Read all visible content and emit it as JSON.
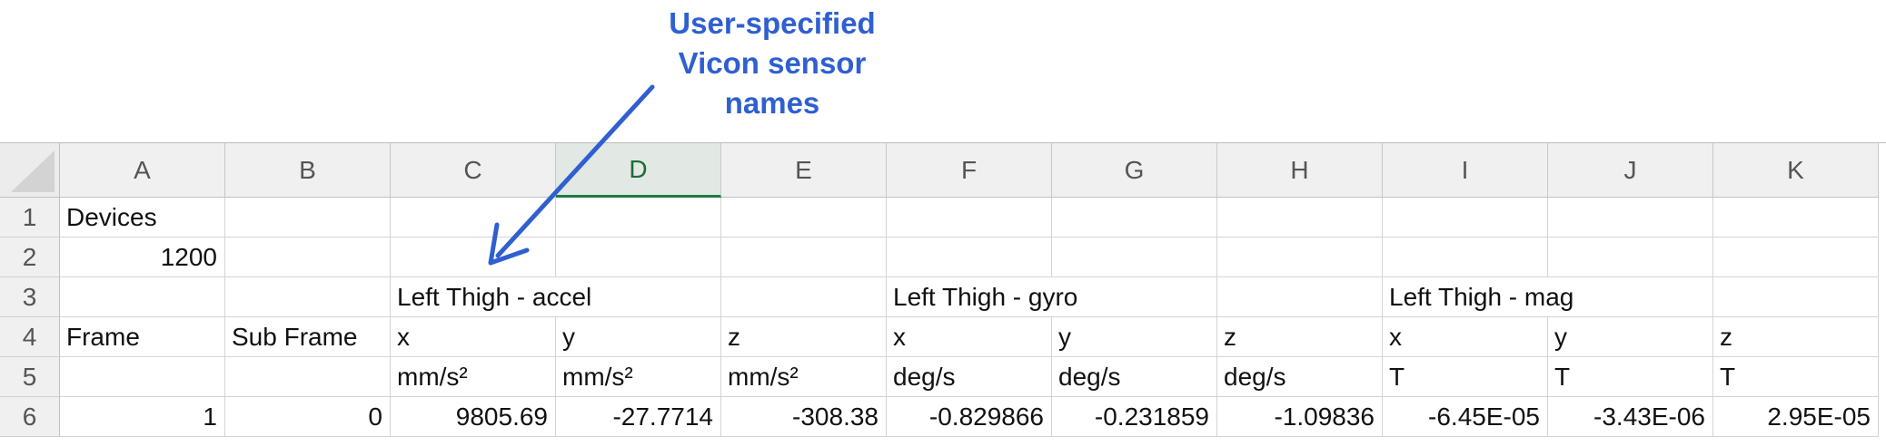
{
  "annotation": {
    "lines": [
      "User-specified",
      "Vicon sensor",
      "names"
    ],
    "color": "#2f5fd0"
  },
  "columns": [
    "A",
    "B",
    "C",
    "D",
    "E",
    "F",
    "G",
    "H",
    "I",
    "J",
    "K"
  ],
  "selected_column": "D",
  "rows": [
    {
      "num": "1",
      "cells": [
        {
          "col": "A",
          "text": "Devices",
          "align": "left"
        }
      ]
    },
    {
      "num": "2",
      "cells": [
        {
          "col": "A",
          "text": "1200",
          "align": "right"
        }
      ]
    },
    {
      "num": "3",
      "cells": [
        {
          "col": "C",
          "text": "Left Thigh - accel",
          "align": "left"
        },
        {
          "col": "F",
          "text": "Left Thigh - gyro",
          "align": "left"
        },
        {
          "col": "I",
          "text": "Left Thigh - mag",
          "align": "left"
        }
      ]
    },
    {
      "num": "4",
      "cells": [
        {
          "col": "A",
          "text": "Frame",
          "align": "left"
        },
        {
          "col": "B",
          "text": "Sub Frame",
          "align": "left"
        },
        {
          "col": "C",
          "text": "x",
          "align": "left"
        },
        {
          "col": "D",
          "text": "y",
          "align": "left"
        },
        {
          "col": "E",
          "text": "z",
          "align": "left"
        },
        {
          "col": "F",
          "text": "x",
          "align": "left"
        },
        {
          "col": "G",
          "text": "y",
          "align": "left"
        },
        {
          "col": "H",
          "text": "z",
          "align": "left"
        },
        {
          "col": "I",
          "text": "x",
          "align": "left"
        },
        {
          "col": "J",
          "text": "y",
          "align": "left"
        },
        {
          "col": "K",
          "text": "z",
          "align": "left"
        }
      ]
    },
    {
      "num": "5",
      "cells": [
        {
          "col": "C",
          "text": "mm/s²",
          "align": "left"
        },
        {
          "col": "D",
          "text": "mm/s²",
          "align": "left"
        },
        {
          "col": "E",
          "text": "mm/s²",
          "align": "left"
        },
        {
          "col": "F",
          "text": "deg/s",
          "align": "left"
        },
        {
          "col": "G",
          "text": "deg/s",
          "align": "left"
        },
        {
          "col": "H",
          "text": "deg/s",
          "align": "left"
        },
        {
          "col": "I",
          "text": "T",
          "align": "left"
        },
        {
          "col": "J",
          "text": "T",
          "align": "left"
        },
        {
          "col": "K",
          "text": "T",
          "align": "left"
        }
      ]
    },
    {
      "num": "6",
      "cells": [
        {
          "col": "A",
          "text": "1",
          "align": "right"
        },
        {
          "col": "B",
          "text": "0",
          "align": "right"
        },
        {
          "col": "C",
          "text": "9805.69",
          "align": "right"
        },
        {
          "col": "D",
          "text": "-27.7714",
          "align": "right"
        },
        {
          "col": "E",
          "text": "-308.38",
          "align": "right"
        },
        {
          "col": "F",
          "text": "-0.829866",
          "align": "right"
        },
        {
          "col": "G",
          "text": "-0.231859",
          "align": "right"
        },
        {
          "col": "H",
          "text": "-1.09836",
          "align": "right"
        },
        {
          "col": "I",
          "text": "-6.45E-05",
          "align": "right"
        },
        {
          "col": "J",
          "text": "-3.43E-06",
          "align": "right"
        },
        {
          "col": "K",
          "text": "2.95E-05",
          "align": "right"
        }
      ]
    }
  ]
}
